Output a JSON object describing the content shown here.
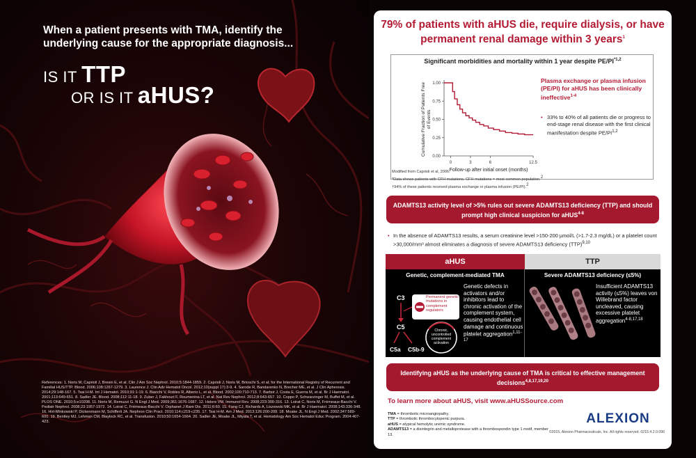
{
  "left": {
    "headline": "When a patient presents with TMA, identify the underlying cause for the appropriate diagnosis...",
    "line1_small": "IS IT ",
    "line1_big": "TTP",
    "line2_small": "OR IS IT ",
    "line2_big": "aHUS?",
    "references": "References: 1. Noris M, Caprioli J, Bresin E, et al. Clin J Am Soc Nephrol. 2010;5:1844-1859. 2. Caprioli J, Noris M, Brioschi S, et al; for the International Registry of Recurrent and Familial HUS/TTP. Blood. 2006;108:1267-1279. 3. Laurence J. Clin Adv Hematol Oncol. 2012;10(suppl 17):3-9. 4. Sarode R, Bandarenko N, Brecher ME, et al. J Clin Apheresis. 2014;29:148-167. 5. Tsai H-M. Int J Hematol. 2010;91:1-19. 6. Bianchi V, Robles R, Alberio L, et al. Blood. 2002;100:710-713. 7. Barbot J, Costa E, Guerra M, et al. Br J Haematol. 2001;113:649-651. 8. Sadler JE. Blood. 2008;112:11-18. 9. Zuber J, Fakhouri F, Roumenina LT, et al. Nat Rev Nephrol. 2012;8:643-657. 10. Coppo P, Schwarzinger M, Buffet M, et al. PLOS ONE. 2010;5:e10208. 11. Noris M, Remuzzi G. N Engl J Med. 2009;361:1676-1687. 12. Holers VM. Immunol Rev. 2008;223:300-316. 13. Loirat C, Noris M, Frémeaux-Bacchi V. Pediatr Nephrol. 2008;23:1957-1972. 14. Loirat C, Frémeaux-Bacchi V. Orphanet J Rare Dis. 2011;6:60. 15. Fang CJ, Richards A, Liszewski MK, et al. Br J Haematol. 2008;143:336-348. 16. Hirt-Minkowski P, Dickenmann M, Schifferli JA. Nephron Clin Pract. 2010;114:c219-c235. 17. Tsai H-M. Am J Med. 2013;126:200-209. 18. Moake JL. N Engl J Med. 2002;347:589-600. 19. Bentley MJ, Lehman CM, Blaylock RC, et al. Transfusion. 2010;50:1654-1664. 20. Sadler JE, Moake JL, Miyata T, et al. Hematology Am Soc Hematol Educ Program. 2004:407-423."
  },
  "card": {
    "title": "79% of patients with aHUS die, require dialysis, or have permanent renal damage within 3 years",
    "title_sup": "1",
    "graph": {
      "heading": "Significant morbidities and mortality within 1 year despite PE/PI",
      "heading_sup": "*1,2",
      "pe_note": "Plasma exchange or plasma infusion (PE/PI) for aHUS has been clinically ineffective",
      "pe_note_sup": "1-4",
      "bullet": "33% to 40% of all patients die or progress to end-stage renal disease with the first clinical manifestation despite PE/PI",
      "bullet_sup": "1,2"
    },
    "footnotes": {
      "modified": "Modified from Caprioli et al, 2006.",
      "note1": "*Data shows patients with CFH mutations. CFH mutations = most common population.",
      "note1_sup": "2",
      "note2": "†94% of these patients received plasma exchange or plasma infusion (PE/PI).",
      "note2_sup": "2"
    },
    "banner1": "ADAMTS13 activity level of >5% rules out severe ADAMTS13 deficiency (TTP) and should prompt high clinical suspicion for aHUS",
    "banner1_sup": "4-8",
    "bullet2": "In the absence of ADAMTS13 results, a serum creatinine level >150-200 µmol/L (>1.7-2.3 mg/dL) or a platelet count >30,000/mm³ almost eliminates a diagnosis of severe ADAMTS13 deficiency (TTP)",
    "bullet2_sup": "9,10",
    "compare": {
      "ahus_tab": "aHUS",
      "ttp_tab": "TTP",
      "ahus_sub": "Genetic, complement-mediated TMA",
      "ttp_sub": "Severe ADAMTS13 deficiency (≤5%)",
      "ahus_text": "Genetic defects in activators and/or inhibitors lead to chronic activation of the complement system, causing endothelial cell damage and continuous platelet aggregation",
      "ahus_text_sup": "1,11-17",
      "ttp_text": "Insufficient ADAMTS13 activity (≤5%) leaves von Willebrand factor uncleaved, causing excessive platelet aggregation",
      "ttp_text_sup": "4-8,17,18",
      "diagram": {
        "c3": "C3",
        "c5": "C5",
        "c5a": "C5a",
        "c5b9": "C5b-9",
        "box_label": "Permanent genetic mutations in complement regulators",
        "circle_label": "Chronic, uncontrolled complement activation"
      }
    },
    "banner2": "Identifying aHUS as the underlying cause of TMA is critical to effective management decisions",
    "banner2_sup": "4,8,17,19,20",
    "learn_more": "To learn more about aHUS, visit www.aHUSSource.com",
    "definitions": [
      {
        "term": "TMA",
        "def": " = thrombotic microangiopathy."
      },
      {
        "term": "TTP",
        "def": " = thrombotic thrombocytopenic purpura."
      },
      {
        "term": "aHUS",
        "def": " = atypical hemolytic uremic syndrome."
      },
      {
        "term": "ADAMTS13",
        "def": " = a disintegrin and metalloprotease with a thrombospondin type 1 motif, member 13."
      }
    ],
    "logo": "ALEXION",
    "copyright": "©2015, Alexion Pharmaceuticals, Inc. All rights reserved. 0215.4.2.0.096"
  },
  "chart_data": {
    "type": "line",
    "title": "Significant morbidities and mortality within 1 year despite PE/PI",
    "xlabel": "Follow-up after initial onset (months)",
    "ylabel": "Cumulative Fraction of Patients Free of Events",
    "x_ticks": [
      0,
      3,
      6,
      12.5
    ],
    "y_ticks": [
      "0.00",
      "0.25",
      "0.50",
      "0.75",
      "1.00"
    ],
    "xlim": [
      -1,
      12.5
    ],
    "ylim": [
      0,
      1
    ],
    "step": true,
    "x": [
      -1,
      0,
      0.3,
      0.6,
      1.0,
      1.4,
      1.8,
      2.3,
      2.8,
      3.3,
      3.8,
      4.4,
      5.0,
      5.7,
      6.5,
      7.4,
      8.3,
      9.3,
      10.2,
      11.2,
      12.5
    ],
    "y": [
      1.0,
      1.0,
      0.88,
      0.78,
      0.7,
      0.64,
      0.59,
      0.55,
      0.52,
      0.49,
      0.46,
      0.43,
      0.41,
      0.38,
      0.36,
      0.34,
      0.32,
      0.31,
      0.3,
      0.29,
      0.29
    ],
    "line_color": "#b31b34"
  },
  "colors": {
    "brand_red": "#a5192f",
    "title_red": "#b31b34",
    "alexion_blue": "#1a3b85"
  }
}
